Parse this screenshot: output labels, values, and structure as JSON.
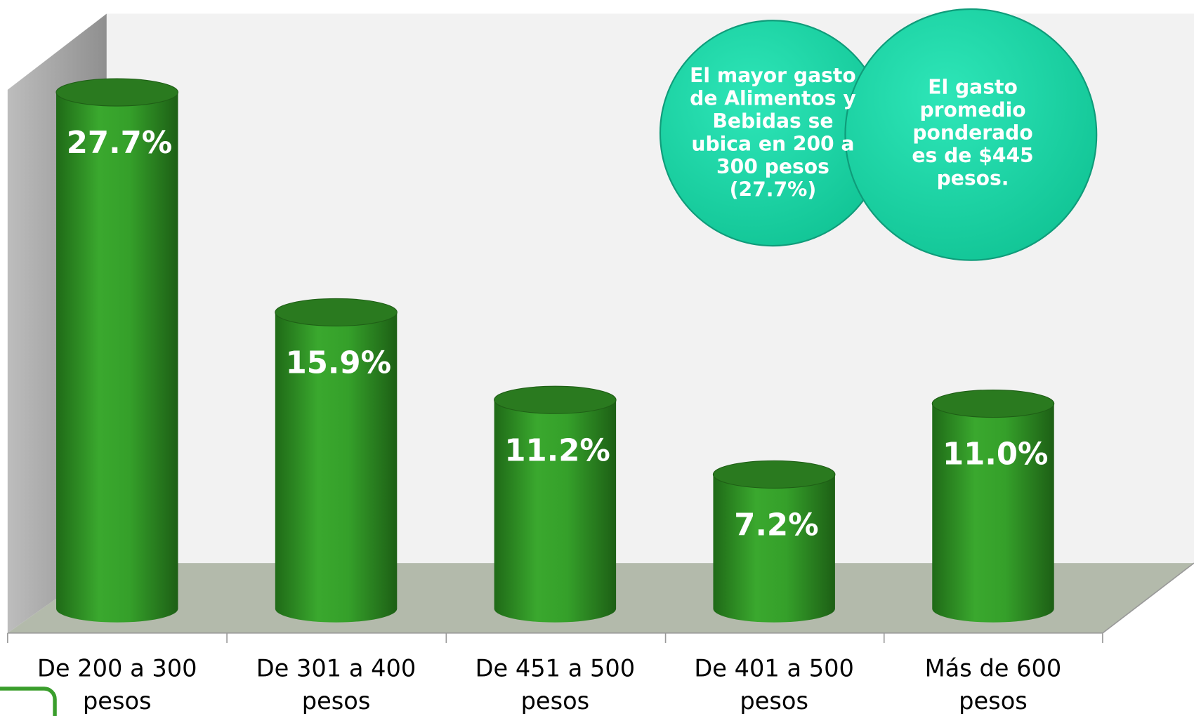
{
  "chart_data": {
    "type": "bar",
    "categories": [
      "De 200 a 300 pesos",
      "De 301 a 400 pesos",
      "De 451 a 500 pesos",
      "De 401 a 500 pesos",
      "Más de 600 pesos"
    ],
    "values": [
      27.7,
      15.9,
      11.2,
      7.2,
      11.0
    ],
    "value_labels": [
      "27.7%",
      "15.9%",
      "11.2%",
      "7.2%",
      "11.0%"
    ],
    "color": "#3a9e2c",
    "annotations": [
      "El mayor gasto de Alimentos y Bebidas se ubica en 200 a 300 pesos (27.7%)",
      "El gasto promedio ponderado es de $445 pesos."
    ]
  }
}
